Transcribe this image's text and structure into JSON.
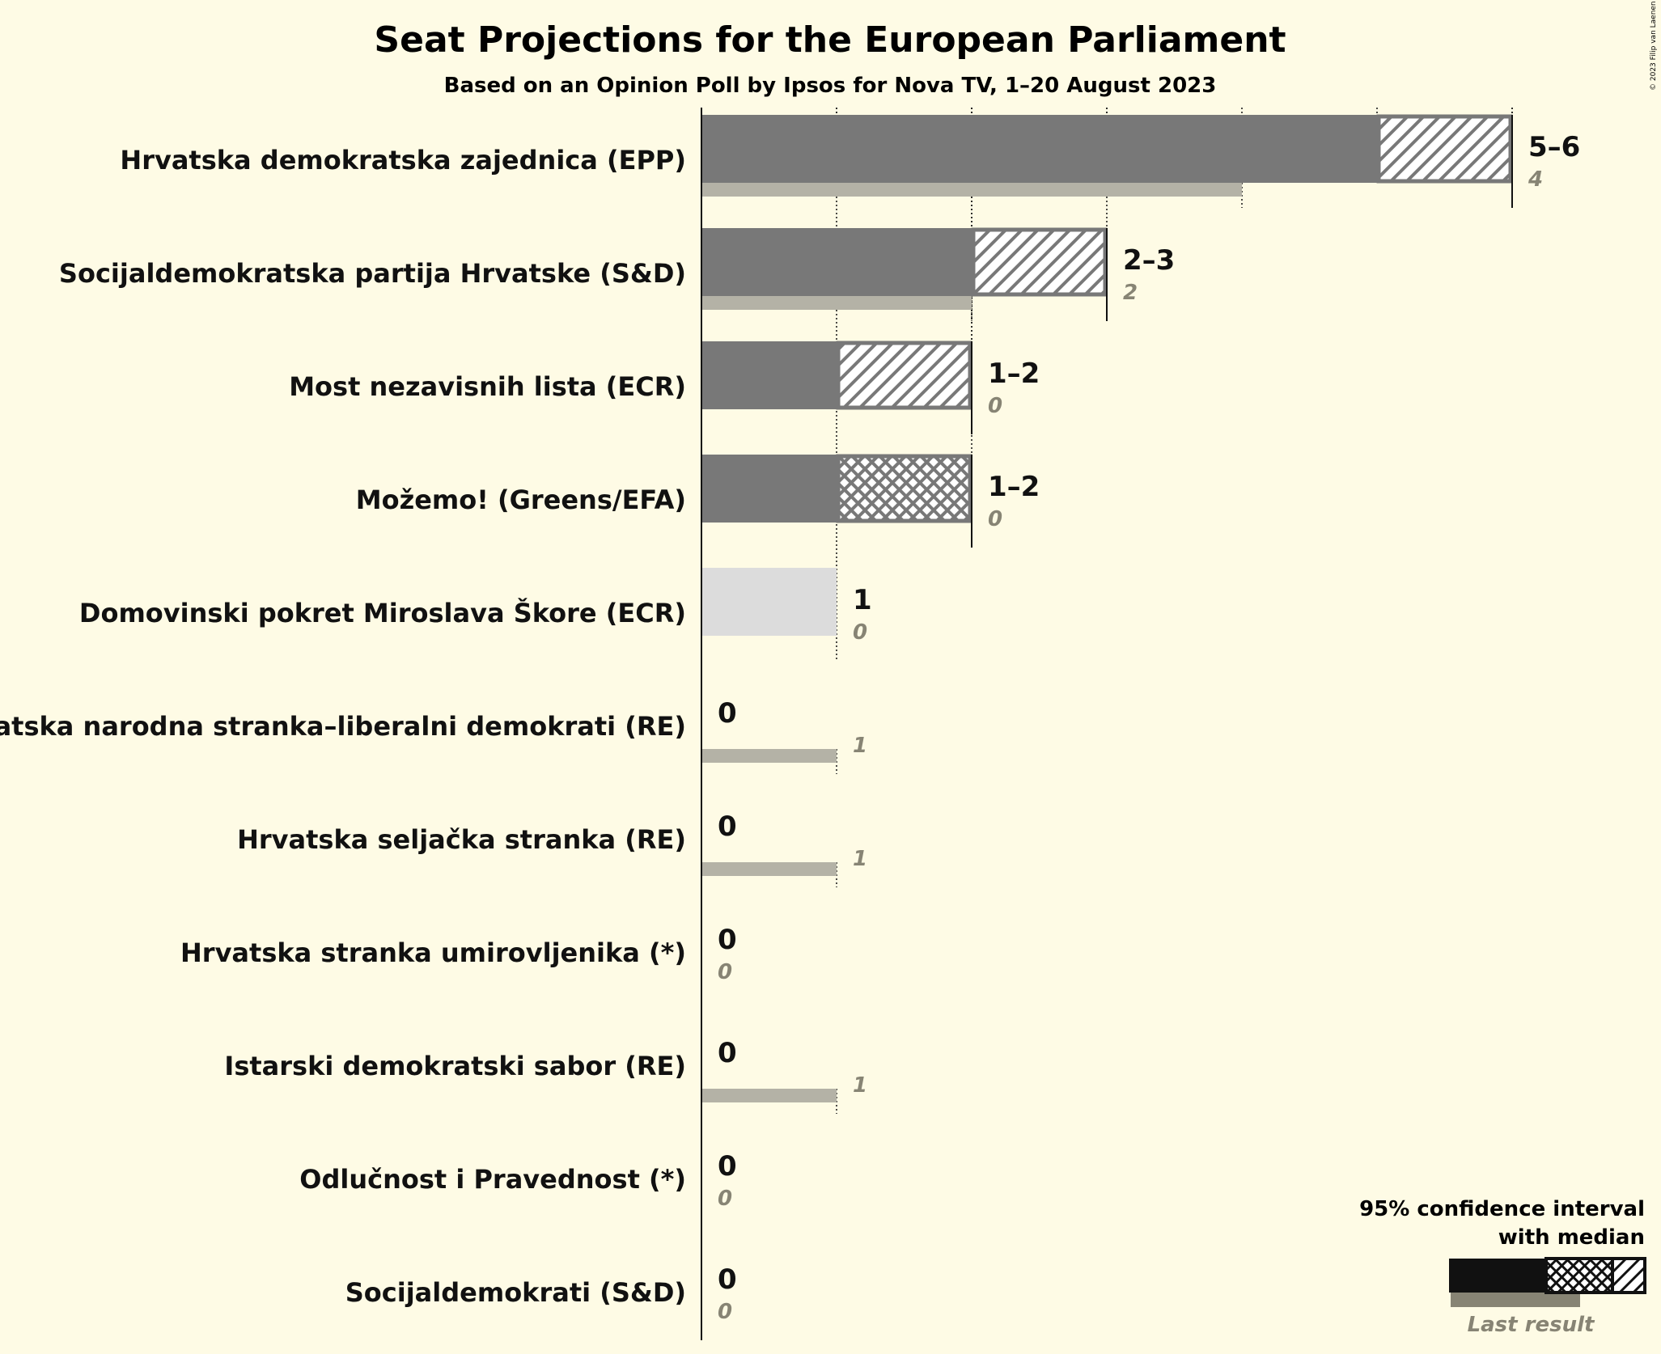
{
  "credit": "© 2023 Filip van Laenen",
  "chart_data": {
    "type": "bar",
    "title": "Seat Projections for the European Parliament",
    "subtitle": "Based on an Opinion Poll by Ipsos for Nova TV, 1–20 August 2023",
    "xlim": [
      0,
      6
    ],
    "grid": true,
    "parties": [
      {
        "name": "Hrvatska demokratska zajednica (EPP)",
        "low": 5,
        "median": 5,
        "high": 6,
        "range_label": "5–6",
        "last_result": 4,
        "last_label": "4",
        "pattern": "hatch",
        "uncertain": false
      },
      {
        "name": "Socijaldemokratska partija Hrvatske (S&D)",
        "low": 2,
        "median": 2,
        "high": 3,
        "range_label": "2–3",
        "last_result": 2,
        "last_label": "2",
        "pattern": "hatch",
        "uncertain": false
      },
      {
        "name": "Most nezavisnih lista (ECR)",
        "low": 1,
        "median": 1,
        "high": 2,
        "range_label": "1–2",
        "last_result": 0,
        "last_label": "0",
        "pattern": "hatch",
        "uncertain": false
      },
      {
        "name": "Možemo! (Greens/EFA)",
        "low": 1,
        "median": 1,
        "high": 2,
        "range_label": "1–2",
        "last_result": 0,
        "last_label": "0",
        "pattern": "crosshatch",
        "uncertain": false
      },
      {
        "name": "Domovinski pokret Miroslava Škore (ECR)",
        "low": 1,
        "median": 1,
        "high": 1,
        "range_label": "1",
        "last_result": 0,
        "last_label": "0",
        "pattern": "none",
        "uncertain": true
      },
      {
        "name": "Hrvatska narodna stranka–liberalni demokrati (RE)",
        "low": 0,
        "median": 0,
        "high": 0,
        "range_label": "0",
        "last_result": 1,
        "last_label": "1",
        "pattern": "none",
        "uncertain": false
      },
      {
        "name": "Hrvatska seljačka stranka (RE)",
        "low": 0,
        "median": 0,
        "high": 0,
        "range_label": "0",
        "last_result": 1,
        "last_label": "1",
        "pattern": "none",
        "uncertain": false
      },
      {
        "name": "Hrvatska stranka umirovljenika (*)",
        "low": 0,
        "median": 0,
        "high": 0,
        "range_label": "0",
        "last_result": 0,
        "last_label": "0",
        "pattern": "none",
        "uncertain": false
      },
      {
        "name": "Istarski demokratski sabor (RE)",
        "low": 0,
        "median": 0,
        "high": 0,
        "range_label": "0",
        "last_result": 1,
        "last_label": "1",
        "pattern": "none",
        "uncertain": false
      },
      {
        "name": "Odlučnost i Pravednost (*)",
        "low": 0,
        "median": 0,
        "high": 0,
        "range_label": "0",
        "last_result": 0,
        "last_label": "0",
        "pattern": "none",
        "uncertain": false
      },
      {
        "name": "Socijaldemokrati (S&D)",
        "low": 0,
        "median": 0,
        "high": 0,
        "range_label": "0",
        "last_result": 0,
        "last_label": "0",
        "pattern": "none",
        "uncertain": false
      }
    ],
    "legend": {
      "title_line1": "95% confidence interval",
      "title_line2": "with median",
      "last_result": "Last result",
      "placement": "bottom-right"
    },
    "colors": {
      "background": "#fefbe5",
      "bar": "#787878",
      "last_result": "#b4b2a6",
      "uncertain": "#dcdcdc",
      "hatch_line": "#787878",
      "legend_bar": "#111111",
      "legend_last": "#878474",
      "last_label": "#878474",
      "text": "#111111"
    }
  }
}
